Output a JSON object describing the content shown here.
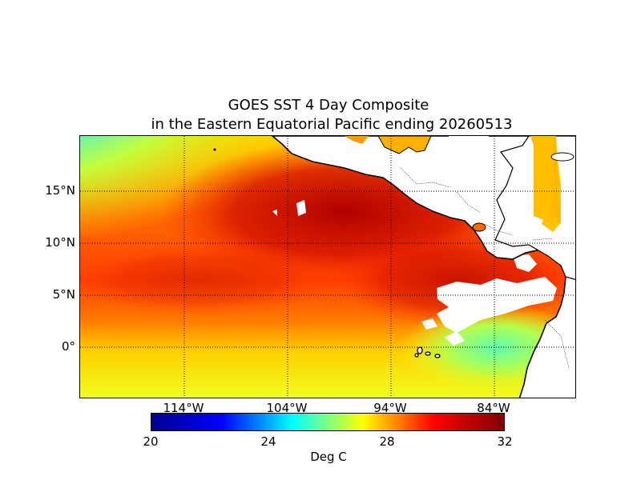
{
  "title": {
    "line1": "GOES SST 4 Day Composite",
    "line2": "in the Eastern Equatorial Pacific ending 20260513"
  },
  "map": {
    "latitude_labels": [
      "15°N",
      "10°N",
      "5°N",
      "0°"
    ],
    "longitude_labels": [
      "114°W",
      "104°W",
      "94°W",
      "84°W"
    ],
    "gridlines": "dotted",
    "land_color": "#ffffff",
    "missing_data_color": "#ffffff"
  },
  "colorbar": {
    "ticks": [
      "20",
      "24",
      "28",
      "32"
    ],
    "label": "Deg C",
    "colormap": "jet",
    "colors": [
      "#00008f",
      "#0000ff",
      "#00ffff",
      "#ffff00",
      "#ff0000",
      "#800000"
    ]
  }
}
